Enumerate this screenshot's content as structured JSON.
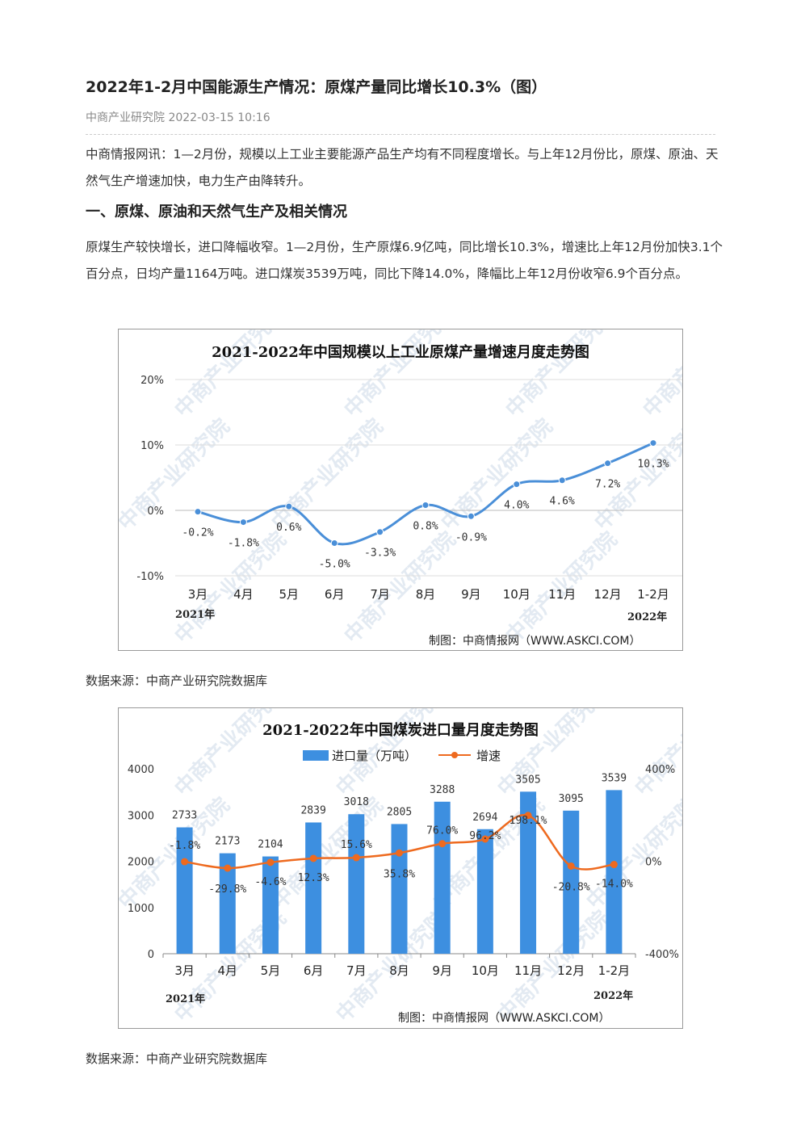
{
  "article": {
    "title": "2022年1-2月中国能源生产情况：原煤产量同比增长10.3%（图）",
    "meta": "中商产业研究院 2022-03-15 10:16",
    "intro": "中商情报网讯：1—2月份，规模以上工业主要能源产品生产均有不同程度增长。与上年12月份比，原煤、原油、天然气生产增速加快，电力生产由降转升。",
    "section1": "一、原煤、原油和天然气生产及相关情况",
    "para1": "原煤生产较快增长，进口降幅收窄。1—2月份，生产原煤6.9亿吨，同比增长10.3%，增速比上年12月份加快3.1个百分点，日均产量1164万吨。进口煤炭3539万吨，同比下降14.0%，降幅比上年12月份收窄6.9个百分点。",
    "source1": "数据来源：中商产业研究院数据库",
    "source2": "数据来源：中商产业研究院数据库"
  },
  "chart_data": [
    {
      "type": "line",
      "title": "2021-2022年中国规模以上工业原煤产量增速月度走势图",
      "categories": [
        "3月",
        "4月",
        "5月",
        "6月",
        "7月",
        "8月",
        "9月",
        "10月",
        "11月",
        "12月",
        "1-2月"
      ],
      "values": [
        -0.2,
        -1.8,
        0.6,
        -5.0,
        -3.3,
        0.8,
        -0.9,
        4.0,
        4.6,
        7.2,
        10.3
      ],
      "labels": [
        "-0.2%",
        "-1.8%",
        "0.6%",
        "-5.0%",
        "-3.3%",
        "0.8%",
        "-0.9%",
        "4.0%",
        "4.6%",
        "7.2%",
        "10.3%"
      ],
      "yticks": [
        "20%",
        "10%",
        "0%",
        "-10%"
      ],
      "ylim": [
        -10,
        20
      ],
      "year_left": "2021年",
      "year_right": "2022年",
      "credit": "制图：中商情报网（WWW.ASKCI.COM）",
      "watermark": "中商产业研究院",
      "color": "#4a8fd8"
    },
    {
      "type": "bar",
      "title": "2021-2022年中国煤炭进口量月度走势图",
      "categories": [
        "3月",
        "4月",
        "5月",
        "6月",
        "7月",
        "8月",
        "9月",
        "10月",
        "11月",
        "12月",
        "1-2月"
      ],
      "series": [
        {
          "name": "进口量（万吨）",
          "values": [
            2733,
            2173,
            2104,
            2839,
            3018,
            2805,
            3288,
            2694,
            3505,
            3095,
            3539
          ],
          "color": "#3d8fe0"
        },
        {
          "name": "增速",
          "values": [
            -1.8,
            -29.8,
            -4.6,
            12.3,
            15.6,
            35.8,
            76.0,
            96.2,
            198.1,
            -20.8,
            -14.0
          ],
          "labels": [
            "-1.8%",
            "-29.8%",
            "-4.6%",
            "12.3%",
            "15.6%",
            "35.8%",
            "76.0%",
            "96.2%",
            "198.1%",
            "-20.8%",
            "-14.0%"
          ],
          "color": "#ee6a1f"
        }
      ],
      "bar_labels": [
        "2733",
        "2173",
        "2104",
        "2839",
        "3018",
        "2805",
        "3288",
        "2694",
        "3505",
        "3095",
        "3539"
      ],
      "yticks_left": [
        "4000",
        "3000",
        "2000",
        "1000",
        "0"
      ],
      "yticks_right": [
        "400%",
        "0%",
        "-400%"
      ],
      "ylim_left": [
        0,
        4000
      ],
      "ylim_right": [
        -400,
        400
      ],
      "year_left": "2021年",
      "year_right": "2022年",
      "credit": "制图：中商情报网（WWW.ASKCI.COM）",
      "watermark": "中商产业研究院"
    }
  ]
}
